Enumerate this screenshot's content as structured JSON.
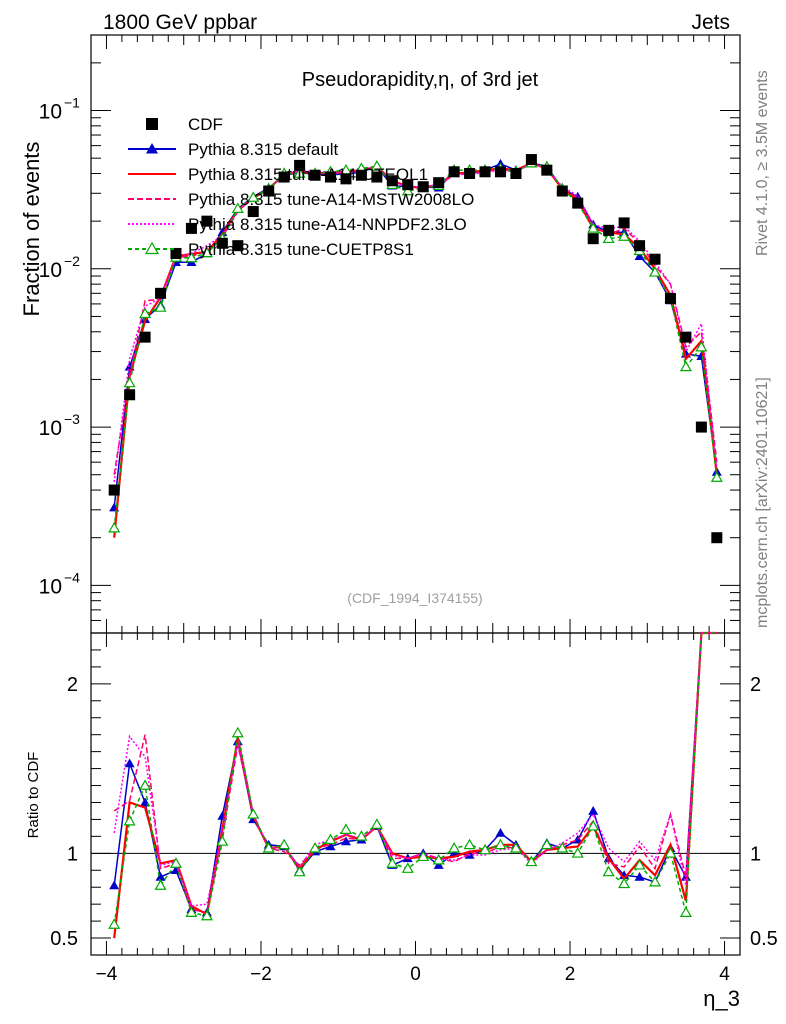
{
  "header": {
    "left": "1800 GeV ppbar",
    "right": "Jets",
    "side_top": "Rivet 4.1.0, ≥ 3.5M events",
    "side_bottom": "mcplots.cern.ch [arXiv:2401.10621]"
  },
  "chart_data": {
    "type": "line",
    "title": "Pseudorapidity,η, of 3rd jet",
    "watermark": "(CDF_1994_I374155)",
    "xlabel": "η_3",
    "ylabel": "Fraction of events",
    "ratio_ylabel": "Ratio to CDF",
    "xlim": [
      -4.2,
      4.2
    ],
    "ylim": [
      5e-05,
      0.3
    ],
    "yscale": "log",
    "ratio_ylim": [
      0.4,
      2.3
    ],
    "x_ticks": [
      -4,
      -2,
      0,
      2,
      4
    ],
    "x_tick_labels": [
      "−4",
      "−2",
      "0",
      "2",
      "4"
    ],
    "y_ticks": [
      0.0001,
      0.001,
      0.01,
      0.1
    ],
    "y_tick_labels": [
      {
        "base": "10",
        "exp": "−4"
      },
      {
        "base": "10",
        "exp": "−3"
      },
      {
        "base": "10",
        "exp": "−2"
      },
      {
        "base": "10",
        "exp": "−1"
      }
    ],
    "ratio_ticks": [
      0.5,
      1,
      2
    ],
    "ratio_tick_labels": [
      "0.5",
      "1",
      "2"
    ],
    "x": [
      -3.9,
      -3.7,
      -3.5,
      -3.3,
      -3.1,
      -2.9,
      -2.7,
      -2.5,
      -2.3,
      -2.1,
      -1.9,
      -1.7,
      -1.5,
      -1.3,
      -1.1,
      -0.9,
      -0.7,
      -0.5,
      -0.3,
      -0.1,
      0.1,
      0.3,
      0.5,
      0.7,
      0.9,
      1.1,
      1.3,
      1.5,
      1.7,
      1.9,
      2.1,
      2.3,
      2.5,
      2.7,
      2.9,
      3.1,
      3.3,
      3.5,
      3.7,
      3.9
    ],
    "data": {
      "name": "CDF",
      "values": [
        0.0004,
        0.0016,
        0.0037,
        0.007,
        0.0125,
        0.018,
        0.02,
        0.0145,
        0.014,
        0.023,
        0.031,
        0.038,
        0.045,
        0.039,
        0.038,
        0.037,
        0.039,
        0.038,
        0.036,
        0.034,
        0.033,
        0.035,
        0.041,
        0.04,
        0.041,
        0.041,
        0.04,
        0.049,
        0.042,
        0.031,
        0.026,
        0.0155,
        0.0175,
        0.0195,
        0.014,
        0.0115,
        0.0065,
        0.0037,
        0.001,
        0.0002
      ]
    },
    "series": [
      {
        "name": "Pythia 8.315 default",
        "color": "#0000cc",
        "dash": "",
        "marker": "triangle-filled",
        "values": [
          0.00031,
          0.0024,
          0.0048,
          0.0059,
          0.011,
          0.011,
          0.0125,
          0.017,
          0.024,
          0.0285,
          0.0325,
          0.039,
          0.0405,
          0.0395,
          0.0395,
          0.0395,
          0.041,
          0.044,
          0.0335,
          0.033,
          0.033,
          0.0325,
          0.041,
          0.0395,
          0.042,
          0.046,
          0.042,
          0.0465,
          0.0445,
          0.032,
          0.0285,
          0.019,
          0.017,
          0.017,
          0.012,
          0.0095,
          0.0063,
          0.0029,
          0.0028,
          0.00052
        ]
      },
      {
        "name": "Pythia 8.315 tune-A14-CTEQL1",
        "color": "#ff0000",
        "dash": "",
        "marker": "none",
        "values": [
          0.0002,
          0.0021,
          0.0047,
          0.0066,
          0.012,
          0.0124,
          0.0128,
          0.0165,
          0.0235,
          0.028,
          0.032,
          0.0395,
          0.041,
          0.04,
          0.0405,
          0.041,
          0.042,
          0.044,
          0.036,
          0.033,
          0.0325,
          0.034,
          0.04,
          0.0405,
          0.042,
          0.043,
          0.042,
          0.0465,
          0.043,
          0.032,
          0.027,
          0.018,
          0.017,
          0.0165,
          0.0135,
          0.01,
          0.0068,
          0.0027,
          0.0035,
          0.0005
        ]
      },
      {
        "name": "Pythia 8.315 tune-A14-MSTW2008LO",
        "color": "#ff0066",
        "dash": "6,3",
        "marker": "none",
        "values": [
          0.0005,
          0.0021,
          0.0063,
          0.0064,
          0.0118,
          0.012,
          0.013,
          0.0158,
          0.023,
          0.0283,
          0.032,
          0.0385,
          0.042,
          0.04,
          0.04,
          0.0405,
          0.042,
          0.044,
          0.035,
          0.033,
          0.033,
          0.034,
          0.039,
          0.04,
          0.041,
          0.0425,
          0.041,
          0.047,
          0.043,
          0.0325,
          0.028,
          0.0185,
          0.0165,
          0.018,
          0.0145,
          0.0105,
          0.008,
          0.0032,
          0.004,
          0.0006
        ]
      },
      {
        "name": "Pythia 8.315 tune-A14-NNPDF2.3LO",
        "color": "#ff00ff",
        "dash": "2,2",
        "marker": "none",
        "values": [
          0.00045,
          0.0027,
          0.0058,
          0.0065,
          0.0119,
          0.0125,
          0.014,
          0.0162,
          0.0232,
          0.0283,
          0.032,
          0.0395,
          0.0415,
          0.041,
          0.041,
          0.041,
          0.0425,
          0.044,
          0.0355,
          0.033,
          0.033,
          0.034,
          0.0395,
          0.0395,
          0.0405,
          0.042,
          0.041,
          0.046,
          0.043,
          0.033,
          0.029,
          0.019,
          0.018,
          0.0185,
          0.015,
          0.011,
          0.008,
          0.003,
          0.0045,
          0.00055
        ]
      },
      {
        "name": "Pythia 8.315 tune-CUETP8S1",
        "color": "#00aa00",
        "dash": "4,3",
        "marker": "triangle-open",
        "values": [
          0.00023,
          0.0019,
          0.0052,
          0.0057,
          0.0118,
          0.0117,
          0.0126,
          0.0155,
          0.024,
          0.0282,
          0.032,
          0.04,
          0.04,
          0.04,
          0.041,
          0.042,
          0.043,
          0.0445,
          0.034,
          0.031,
          0.0325,
          0.0335,
          0.042,
          0.042,
          0.042,
          0.043,
          0.041,
          0.0465,
          0.044,
          0.032,
          0.026,
          0.018,
          0.0155,
          0.016,
          0.013,
          0.0095,
          0.0065,
          0.0024,
          0.0032,
          0.00048
        ]
      }
    ],
    "ratio_series": [
      {
        "name": "Pythia 8.315 default",
        "values": [
          0.81,
          1.53,
          1.3,
          0.86,
          0.9,
          0.67,
          0.65,
          1.22,
          1.66,
          1.2,
          1.05,
          1.04,
          0.9,
          1.01,
          1.04,
          1.07,
          1.08,
          1.16,
          0.93,
          0.97,
          1.0,
          0.93,
          1.0,
          0.99,
          1.02,
          1.12,
          1.05,
          0.95,
          1.06,
          1.03,
          1.08,
          1.25,
          0.97,
          0.87,
          0.86,
          0.83,
          1.03,
          0.86,
          2.6,
          2.6
        ]
      },
      {
        "name": "Pythia 8.315 tune-A14-CTEQL1",
        "values": [
          0.5,
          1.3,
          1.27,
          0.94,
          0.96,
          0.69,
          0.64,
          1.14,
          1.68,
          1.22,
          1.03,
          1.04,
          0.91,
          1.02,
          1.07,
          1.11,
          1.08,
          1.16,
          1.0,
          0.97,
          0.98,
          0.97,
          0.98,
          1.01,
          1.02,
          1.05,
          1.05,
          0.95,
          1.02,
          1.03,
          1.04,
          1.16,
          0.97,
          0.85,
          0.96,
          0.87,
          1.05,
          0.72,
          2.6,
          2.6
        ]
      },
      {
        "name": "Pythia 8.315 tune-A14-MSTW2008LO",
        "values": [
          1.25,
          1.31,
          1.7,
          0.91,
          0.94,
          0.67,
          0.65,
          1.09,
          1.64,
          1.23,
          1.03,
          1.01,
          0.93,
          1.03,
          1.05,
          1.09,
          1.08,
          1.16,
          0.97,
          0.97,
          1.0,
          0.97,
          0.95,
          1.0,
          1.0,
          1.04,
          1.03,
          0.96,
          1.02,
          1.05,
          1.08,
          1.19,
          0.94,
          0.92,
          1.04,
          0.91,
          1.23,
          0.86,
          2.6,
          2.6
        ]
      },
      {
        "name": "Pythia 8.315 tune-A14-NNPDF2.3LO",
        "values": [
          1.12,
          1.69,
          1.57,
          0.93,
          0.95,
          0.69,
          0.7,
          1.12,
          1.66,
          1.23,
          1.03,
          1.04,
          0.92,
          1.05,
          1.08,
          1.11,
          1.09,
          1.16,
          0.99,
          0.97,
          1.0,
          0.97,
          0.96,
          0.99,
          0.99,
          1.02,
          1.03,
          0.94,
          1.02,
          1.06,
          1.12,
          1.23,
          1.03,
          0.95,
          1.07,
          0.96,
          1.23,
          0.81,
          2.6,
          2.6
        ]
      },
      {
        "name": "Pythia 8.315 tune-CUETP8S1",
        "values": [
          0.58,
          1.19,
          1.4,
          0.81,
          0.94,
          0.65,
          0.63,
          1.07,
          1.71,
          1.23,
          1.03,
          1.05,
          0.89,
          1.03,
          1.08,
          1.14,
          1.1,
          1.17,
          0.94,
          0.91,
          0.98,
          0.96,
          1.03,
          1.05,
          1.02,
          1.05,
          1.03,
          0.95,
          1.05,
          1.03,
          1.0,
          1.16,
          0.89,
          0.82,
          0.93,
          0.83,
          1.0,
          0.65,
          2.6,
          2.6
        ]
      }
    ]
  }
}
